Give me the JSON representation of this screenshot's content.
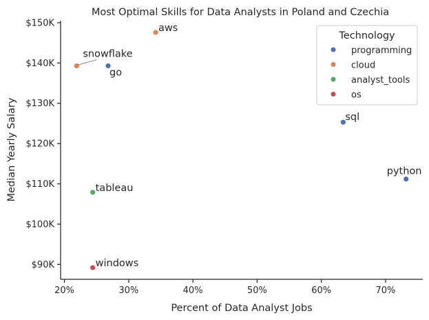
{
  "chart_data": {
    "type": "scatter",
    "title": "Most Optimal Skills for Data Analysts in Poland and Czechia",
    "xlabel": "Percent of Data Analyst Jobs",
    "ylabel": "Median Yearly Salary",
    "xlim": [
      19.4,
      75.8
    ],
    "ylim": [
      86300,
      150500
    ],
    "x_ticks": [
      20,
      30,
      40,
      50,
      60,
      70
    ],
    "x_tick_labels": [
      "20%",
      "30%",
      "40%",
      "50%",
      "60%",
      "70%"
    ],
    "y_ticks": [
      90000,
      100000,
      110000,
      120000,
      130000,
      140000,
      150000
    ],
    "y_tick_labels": [
      "$90K",
      "$100K",
      "$110K",
      "$120K",
      "$130K",
      "$140K",
      "$150K"
    ],
    "grid": false,
    "legend": {
      "title": "Technology",
      "placement": "top-right",
      "entries": [
        {
          "label": "programming",
          "color": "#4c72b0"
        },
        {
          "label": "cloud",
          "color": "#dd8452"
        },
        {
          "label": "analyst_tools",
          "color": "#55a868"
        },
        {
          "label": "os",
          "color": "#c44e52"
        }
      ]
    },
    "points": [
      {
        "skill": "python",
        "x": 73.2,
        "y": 111200,
        "technology": "programming",
        "color": "#4c72b0"
      },
      {
        "skill": "sql",
        "x": 63.4,
        "y": 125300,
        "technology": "programming",
        "color": "#4c72b0"
      },
      {
        "skill": "go",
        "x": 26.8,
        "y": 139300,
        "technology": "programming",
        "color": "#4c72b0"
      },
      {
        "skill": "aws",
        "x": 34.2,
        "y": 147600,
        "technology": "cloud",
        "color": "#dd8452"
      },
      {
        "skill": "snowflake",
        "x": 21.9,
        "y": 139300,
        "technology": "cloud",
        "color": "#dd8452"
      },
      {
        "skill": "tableau",
        "x": 24.4,
        "y": 107900,
        "technology": "analyst_tools",
        "color": "#55a868"
      },
      {
        "skill": "windows",
        "x": 24.4,
        "y": 89200,
        "technology": "os",
        "color": "#c44e52"
      }
    ]
  }
}
